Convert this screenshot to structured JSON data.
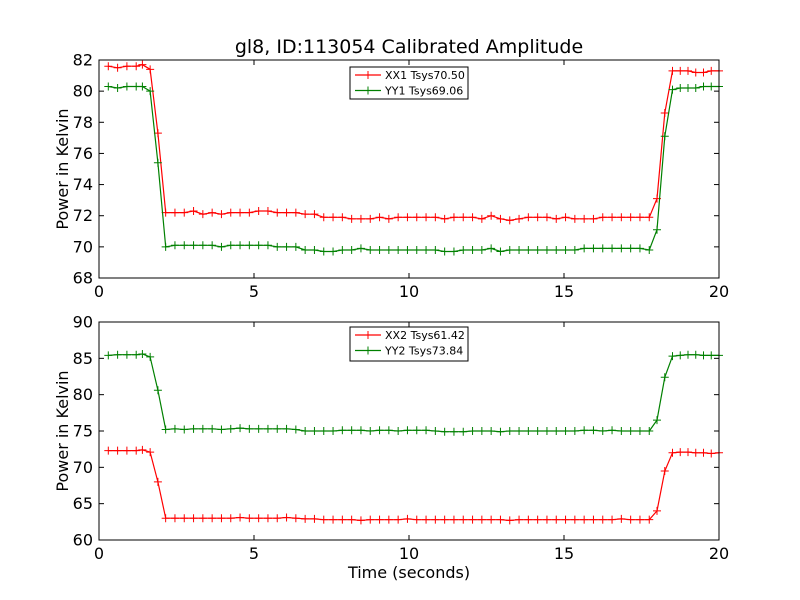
{
  "chart_data": [
    {
      "type": "line",
      "title": "gl8, ID:113054 Calibrated Amplitude",
      "xlabel": "",
      "ylabel": "Power in Kelvin",
      "xlim": [
        0,
        20
      ],
      "ylim": [
        68,
        82
      ],
      "xticks": [
        0,
        5,
        10,
        15,
        20
      ],
      "yticks": [
        68,
        70,
        72,
        74,
        76,
        78,
        80,
        82
      ],
      "grid": false,
      "legend_position": "top-center",
      "x": [
        0.3,
        0.6,
        0.9,
        1.2,
        1.4,
        1.65,
        1.9,
        2.15,
        2.45,
        2.75,
        3.05,
        3.35,
        3.65,
        3.95,
        4.25,
        4.55,
        4.85,
        5.15,
        5.45,
        5.75,
        6.05,
        6.35,
        6.65,
        6.95,
        7.25,
        7.55,
        7.85,
        8.15,
        8.45,
        8.75,
        9.05,
        9.35,
        9.65,
        9.95,
        10.25,
        10.55,
        10.85,
        11.15,
        11.45,
        11.75,
        12.05,
        12.35,
        12.65,
        12.95,
        13.25,
        13.55,
        13.85,
        14.15,
        14.45,
        14.75,
        15.05,
        15.35,
        15.65,
        15.95,
        16.25,
        16.55,
        16.85,
        17.15,
        17.45,
        17.75,
        18.0,
        18.25,
        18.5,
        18.75,
        19.0,
        19.25,
        19.5,
        19.75,
        20.0
      ],
      "series": [
        {
          "name": "XX1 Tsys70.50",
          "color": "#ff0000",
          "values": [
            81.6,
            81.5,
            81.6,
            81.6,
            81.7,
            81.4,
            77.3,
            72.2,
            72.2,
            72.2,
            72.3,
            72.1,
            72.2,
            72.1,
            72.2,
            72.2,
            72.2,
            72.3,
            72.3,
            72.2,
            72.2,
            72.2,
            72.1,
            72.1,
            71.9,
            71.9,
            71.9,
            71.8,
            71.8,
            71.8,
            71.9,
            71.8,
            71.9,
            71.9,
            71.9,
            71.9,
            71.9,
            71.8,
            71.9,
            71.9,
            71.9,
            71.8,
            72.0,
            71.8,
            71.7,
            71.8,
            71.9,
            71.9,
            71.9,
            71.8,
            71.9,
            71.8,
            71.8,
            71.8,
            71.9,
            71.9,
            71.9,
            71.9,
            71.9,
            71.9,
            73.1,
            78.6,
            81.3,
            81.3,
            81.3,
            81.2,
            81.2,
            81.3,
            81.3
          ]
        },
        {
          "name": "YY1 Tsys69.06",
          "color": "#008000",
          "values": [
            80.3,
            80.2,
            80.3,
            80.3,
            80.3,
            80.0,
            75.4,
            70.0,
            70.1,
            70.1,
            70.1,
            70.1,
            70.1,
            70.0,
            70.1,
            70.1,
            70.1,
            70.1,
            70.1,
            70.0,
            70.0,
            70.0,
            69.8,
            69.8,
            69.7,
            69.7,
            69.8,
            69.8,
            69.9,
            69.8,
            69.8,
            69.8,
            69.8,
            69.8,
            69.8,
            69.8,
            69.8,
            69.7,
            69.7,
            69.8,
            69.8,
            69.8,
            69.9,
            69.7,
            69.8,
            69.8,
            69.8,
            69.8,
            69.8,
            69.8,
            69.8,
            69.8,
            69.9,
            69.9,
            69.9,
            69.9,
            69.9,
            69.9,
            69.9,
            69.8,
            71.1,
            77.1,
            80.1,
            80.2,
            80.2,
            80.2,
            80.3,
            80.3,
            80.3
          ]
        }
      ]
    },
    {
      "type": "line",
      "title": "",
      "xlabel": "Time (seconds)",
      "ylabel": "Power in Kelvin",
      "xlim": [
        0,
        20
      ],
      "ylim": [
        60,
        90
      ],
      "xticks": [
        0,
        5,
        10,
        15,
        20
      ],
      "yticks": [
        60,
        65,
        70,
        75,
        80,
        85,
        90
      ],
      "grid": false,
      "legend_position": "top-center",
      "x": [
        0.3,
        0.6,
        0.9,
        1.2,
        1.4,
        1.65,
        1.9,
        2.15,
        2.45,
        2.75,
        3.05,
        3.35,
        3.65,
        3.95,
        4.25,
        4.55,
        4.85,
        5.15,
        5.45,
        5.75,
        6.05,
        6.35,
        6.65,
        6.95,
        7.25,
        7.55,
        7.85,
        8.15,
        8.45,
        8.75,
        9.05,
        9.35,
        9.65,
        9.95,
        10.25,
        10.55,
        10.85,
        11.15,
        11.45,
        11.75,
        12.05,
        12.35,
        12.65,
        12.95,
        13.25,
        13.55,
        13.85,
        14.15,
        14.45,
        14.75,
        15.05,
        15.35,
        15.65,
        15.95,
        16.25,
        16.55,
        16.85,
        17.15,
        17.45,
        17.75,
        18.0,
        18.25,
        18.5,
        18.75,
        19.0,
        19.25,
        19.5,
        19.75,
        20.0
      ],
      "series": [
        {
          "name": "XX2 Tsys61.42",
          "color": "#ff0000",
          "values": [
            72.3,
            72.3,
            72.3,
            72.3,
            72.4,
            72.1,
            68.0,
            63.0,
            63.0,
            63.0,
            63.0,
            63.0,
            63.0,
            63.0,
            63.0,
            63.1,
            63.0,
            63.0,
            63.0,
            63.0,
            63.1,
            63.0,
            62.9,
            62.9,
            62.8,
            62.8,
            62.8,
            62.8,
            62.7,
            62.8,
            62.8,
            62.8,
            62.8,
            62.9,
            62.8,
            62.8,
            62.8,
            62.8,
            62.8,
            62.8,
            62.8,
            62.8,
            62.8,
            62.8,
            62.7,
            62.8,
            62.8,
            62.8,
            62.8,
            62.8,
            62.8,
            62.8,
            62.8,
            62.8,
            62.8,
            62.8,
            62.9,
            62.8,
            62.8,
            62.8,
            64.0,
            69.5,
            72.0,
            72.1,
            72.1,
            72.0,
            72.0,
            71.9,
            72.0
          ]
        },
        {
          "name": "YY2 Tsys73.84",
          "color": "#008000",
          "values": [
            85.4,
            85.5,
            85.5,
            85.5,
            85.6,
            85.2,
            80.6,
            75.2,
            75.3,
            75.2,
            75.3,
            75.3,
            75.3,
            75.2,
            75.3,
            75.4,
            75.3,
            75.3,
            75.3,
            75.3,
            75.3,
            75.2,
            75.0,
            75.0,
            75.0,
            75.0,
            75.1,
            75.1,
            75.1,
            75.0,
            75.1,
            75.1,
            75.0,
            75.1,
            75.1,
            75.1,
            75.0,
            74.9,
            74.9,
            74.9,
            75.0,
            75.0,
            75.0,
            74.9,
            75.0,
            75.0,
            75.0,
            75.0,
            75.0,
            75.0,
            75.0,
            75.0,
            75.1,
            75.1,
            75.0,
            75.1,
            75.0,
            75.0,
            75.0,
            75.0,
            76.5,
            82.4,
            85.3,
            85.4,
            85.5,
            85.5,
            85.4,
            85.4,
            85.4
          ]
        }
      ]
    }
  ]
}
